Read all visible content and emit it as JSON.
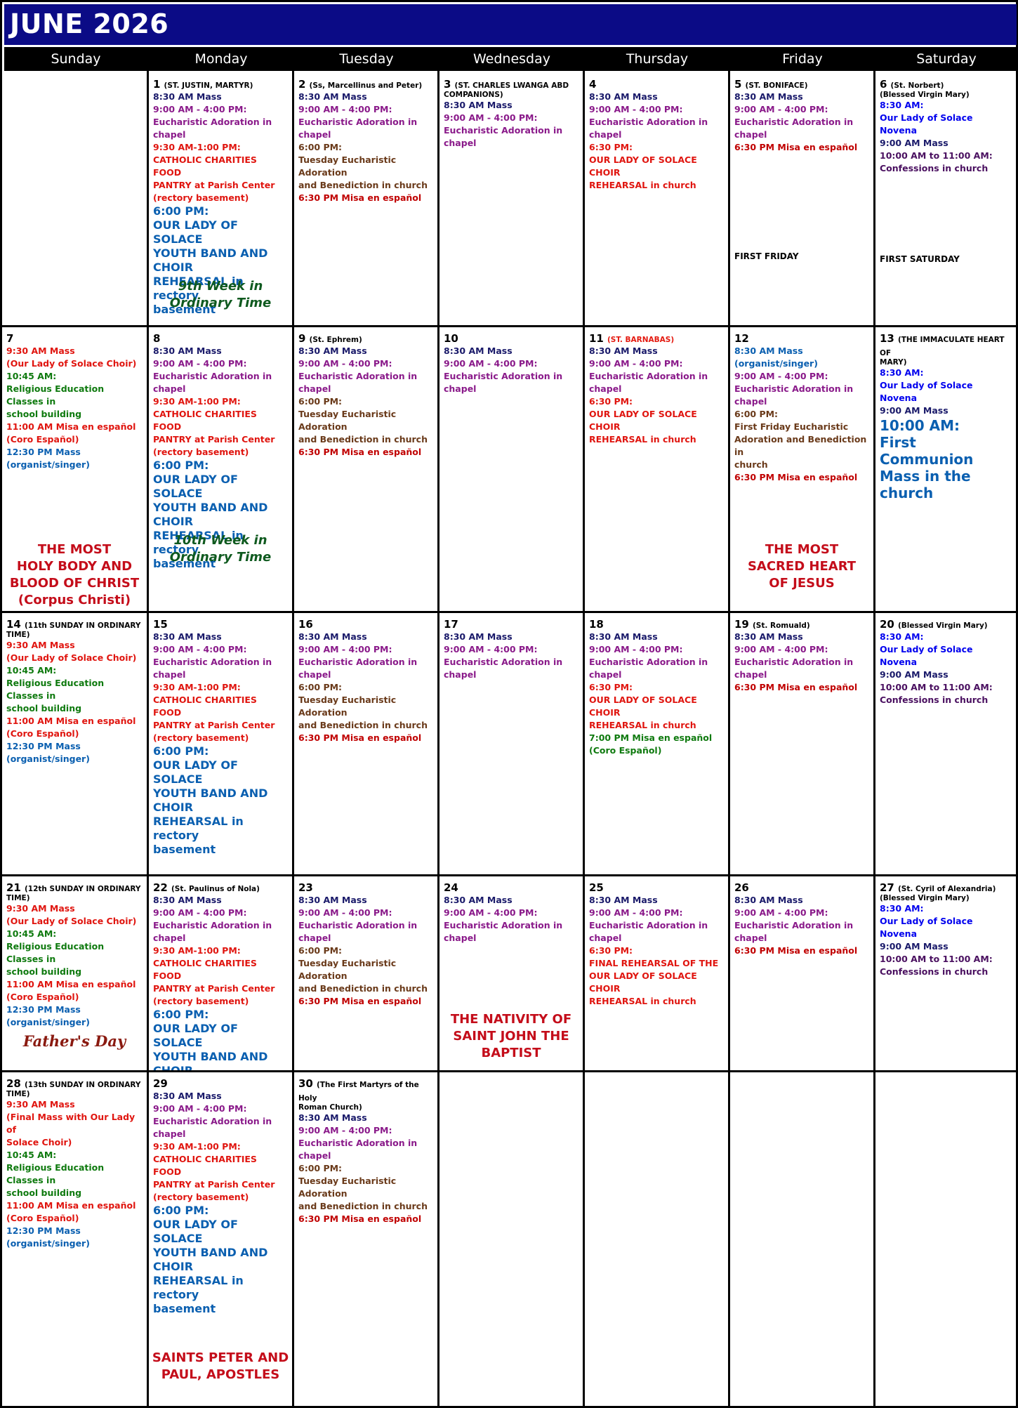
{
  "title": "JUNE 2026",
  "days_of_week": [
    "Sunday",
    "Monday",
    "Tuesday",
    "Wednesday",
    "Thursday",
    "Friday",
    "Saturday"
  ],
  "ev": {
    "mass830": "8:30 AM Mass",
    "ador_time": "9:00 AM - 4:00 PM:",
    "ador": "Eucharistic Adoration in chapel",
    "pantry_time": "9:30 AM-1:00 PM:",
    "pantry1": "CATHOLIC CHARITIES FOOD",
    "pantry2": "PANTRY at Parish Center",
    "pantry3": "(rectory basement)",
    "six": "6:00 PM:",
    "youth1": "OUR LADY OF SOLACE",
    "youth2": "YOUTH BAND AND CHOIR",
    "youth3": "REHEARSAL in rectory",
    "youth4": "basement",
    "tue1": "Tuesday Eucharistic Adoration",
    "tue2": "and Benediction in church",
    "misa630": "6:30 PM Misa en español",
    "six30": "6:30 PM:",
    "choir1": "OUR LADY OF SOLACE CHOIR",
    "choir2": "REHEARSAL in church",
    "sat830": "8:30 AM:",
    "novena": "Our Lady of Solace Novena",
    "mass900": "9:00 AM Mass",
    "conf_time": "10:00 AM to 11:00 AM:",
    "conf": "Confessions in church",
    "sun930": "9:30 AM Mass",
    "sun930b": "(Our Lady of Solace Choir)",
    "sun1045": "10:45 AM:",
    "re1": "Religious Education Classes in",
    "re2": "school building",
    "misa11": "11:00 AM Misa en español",
    "coro": "(Coro Español)",
    "mass1230": "12:30 PM Mass",
    "organist": "(organist/singer)"
  },
  "days": {
    "d1": {
      "num": "1",
      "saint": "(ST. JUSTIN, MARTYR)",
      "ord1": "9th Week in",
      "ord2": "Ordinary Time"
    },
    "d2": {
      "num": "2",
      "saint": "(Ss, Marcellinus and Peter)"
    },
    "d3": {
      "num": "3",
      "saint": "(ST. CHARLES LWANGA ABD",
      "saint2": "COMPANIONS)"
    },
    "d4": {
      "num": "4"
    },
    "d5": {
      "num": "5",
      "saint": "(ST. BONIFACE)",
      "note": "FIRST FRIDAY"
    },
    "d6": {
      "num": "6",
      "saint": "(St. Norbert)",
      "saint2": "(Blessed Virgin Mary)",
      "note": "FIRST SATURDAY"
    },
    "d7": {
      "num": "7",
      "feast1": "THE MOST",
      "feast2": "HOLY BODY AND",
      "feast3": "BLOOD OF CHRIST",
      "feast4": "(Corpus Christi)"
    },
    "d8": {
      "num": "8",
      "ord1": "10th Week in",
      "ord2": "Ordinary Time"
    },
    "d9": {
      "num": "9",
      "saint": "(St. Ephrem)"
    },
    "d10": {
      "num": "10"
    },
    "d11": {
      "num": "11",
      "saint": "(ST. BARNABAS)"
    },
    "d12": {
      "num": "12",
      "organist": "(organist/singer)",
      "ff1": "First Friday Eucharistic",
      "ff2": "Adoration and Benediction in",
      "ff3": "church",
      "feast1": "THE MOST",
      "feast2": "SACRED HEART",
      "feast3": "OF JESUS"
    },
    "d13": {
      "num": "13",
      "saint": "(THE IMMACULATE HEART OF",
      "saint2": "MARY)",
      "fc1": "10:00 AM:",
      "fc2": "First Communion",
      "fc3": "Mass in the church"
    },
    "d14": {
      "num": "14",
      "saint": "(11th SUNDAY IN ORDINARY",
      "saint2": "TIME)"
    },
    "d15": {
      "num": "15"
    },
    "d16": {
      "num": "16"
    },
    "d17": {
      "num": "17"
    },
    "d18": {
      "num": "18",
      "misa7": "7:00 PM Misa en español",
      "coro": "(Coro Español)"
    },
    "d19": {
      "num": "19",
      "saint": "(St. Romuald)"
    },
    "d20": {
      "num": "20",
      "saint": "(Blessed Virgin Mary)"
    },
    "d21": {
      "num": "21",
      "saint": "(12th SUNDAY IN ORDINARY",
      "saint2": "TIME)",
      "fathers": "Father's Day"
    },
    "d22": {
      "num": "22",
      "saint": "(St. Paulinus of Nola)"
    },
    "d23": {
      "num": "23"
    },
    "d24": {
      "num": "24",
      "feast1": "THE NATIVITY OF",
      "feast2": "SAINT JOHN THE",
      "feast3": "BAPTIST"
    },
    "d25": {
      "num": "25",
      "fr1": "FINAL REHEARSAL OF THE",
      "fr2": "OUR LADY OF SOLACE CHOIR",
      "fr3": "REHEARSAL in church"
    },
    "d26": {
      "num": "26"
    },
    "d27": {
      "num": "27",
      "saint": "(St. Cyril of Alexandria)",
      "saint2": "(Blessed Virgin Mary)"
    },
    "d28": {
      "num": "28",
      "saint": "(13th SUNDAY IN ORDINARY",
      "saint2": "TIME)",
      "final1": "(Final Mass with Our Lady of",
      "final2": "Solace Choir)"
    },
    "d29": {
      "num": "29",
      "feast1": "SAINTS PETER AND",
      "feast2": "PAUL, APOSTLES"
    },
    "d30": {
      "num": "30",
      "saint": "(The First Martyrs of the Holy",
      "saint2": "Roman Church)"
    }
  }
}
